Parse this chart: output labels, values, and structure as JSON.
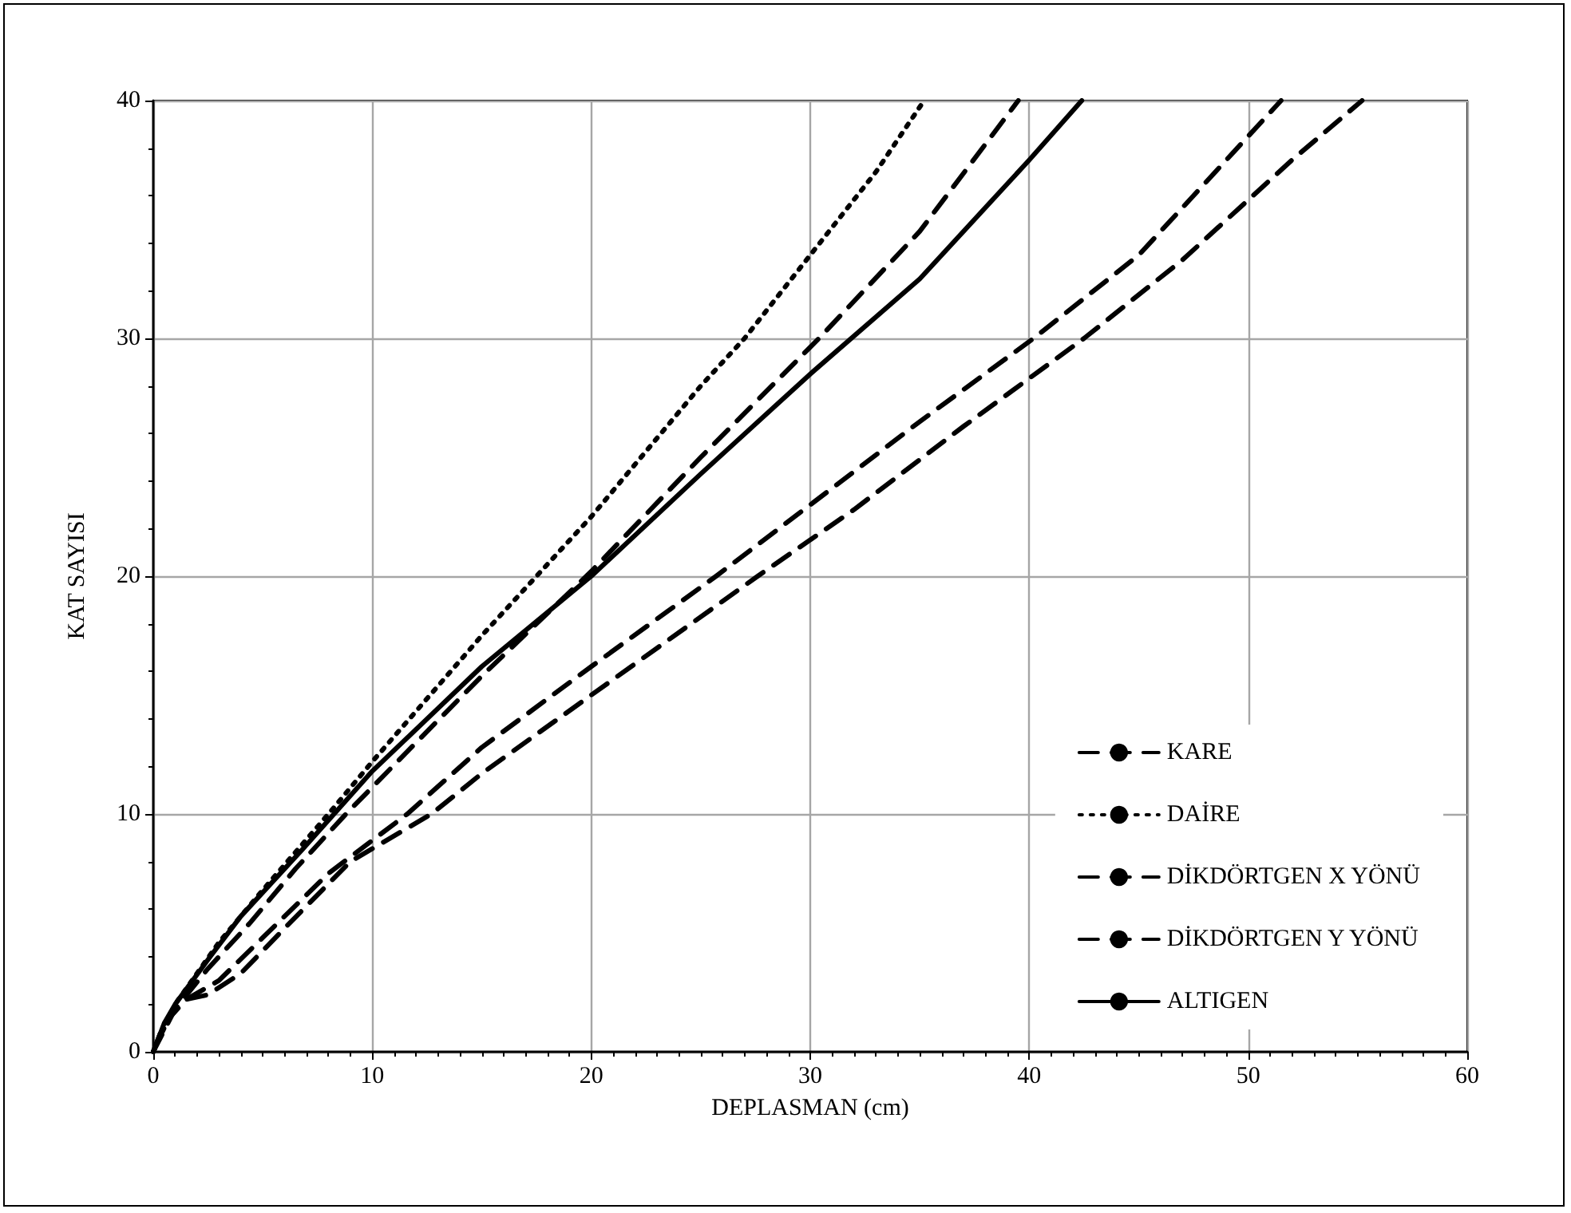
{
  "chart_data": {
    "type": "line",
    "xlabel": "DEPLASMAN (cm)",
    "ylabel": "KAT SAYISI",
    "xlim": [
      0,
      60
    ],
    "xticks": [
      0,
      10,
      20,
      30,
      40,
      50,
      60
    ],
    "ylim": [
      0,
      40
    ],
    "yticks": [
      0,
      10,
      20,
      30,
      40
    ],
    "grid": true,
    "legend": "bottom right",
    "marker": "none",
    "series": [
      {
        "name": "KARE",
        "color": "#000000",
        "line_style": "dashed",
        "x": [
          0,
          1,
          2.5,
          4.4,
          6.5,
          8.8,
          12,
          15,
          20,
          25,
          30.4,
          35,
          39.5
        ],
        "values": [
          0,
          1.8,
          3.5,
          5.4,
          7.7,
          10,
          13,
          15.8,
          20.2,
          25,
          30,
          34.5,
          40
        ]
      },
      {
        "name": "DAİRE",
        "color": "#000000",
        "line_style": "dotted",
        "x": [
          0,
          1,
          3,
          5,
          8,
          10,
          15,
          17.5,
          20,
          25,
          27,
          30,
          33,
          35.2
        ],
        "values": [
          0,
          2,
          4.6,
          6.8,
          10,
          12.2,
          17.5,
          20,
          22.5,
          28,
          30,
          33.5,
          37,
          40
        ]
      },
      {
        "name": "DİKDÖRTGEN X YÖNÜ",
        "color": "#000000",
        "line_style": "dashed",
        "x": [
          0,
          0.5,
          1.5,
          3,
          5,
          8,
          11.6,
          15,
          20,
          25.7,
          30,
          35,
          40.2,
          45,
          50,
          51.5
        ],
        "values": [
          0,
          1.2,
          2.2,
          3,
          4.8,
          7.5,
          10,
          12.8,
          16.2,
          20,
          23,
          26.5,
          30,
          33.5,
          38.5,
          40
        ]
      },
      {
        "name": "DİKDÖRTGEN Y YÖNÜ",
        "color": "#000000",
        "line_style": "dashed",
        "x": [
          0,
          0.5,
          1.5,
          2.5,
          4,
          6,
          9,
          12.7,
          15,
          20,
          27.6,
          32,
          37,
          42.5,
          47,
          52,
          55.2
        ],
        "values": [
          0,
          1.2,
          2.2,
          2.4,
          3.3,
          5.2,
          8,
          10,
          11.7,
          15,
          20,
          22.8,
          26.3,
          30,
          33.3,
          37.5,
          40
        ]
      },
      {
        "name": "ALTIGEN",
        "color": "#000000",
        "line_style": "solid",
        "x": [
          0,
          0.5,
          1,
          2.6,
          4,
          6.8,
          10,
          15,
          20,
          25,
          30,
          35,
          40,
          42.4
        ],
        "values": [
          0,
          1.2,
          2,
          4,
          5.7,
          8.5,
          11.8,
          16.2,
          20,
          24.3,
          28.5,
          32.5,
          37.5,
          40
        ]
      }
    ]
  }
}
